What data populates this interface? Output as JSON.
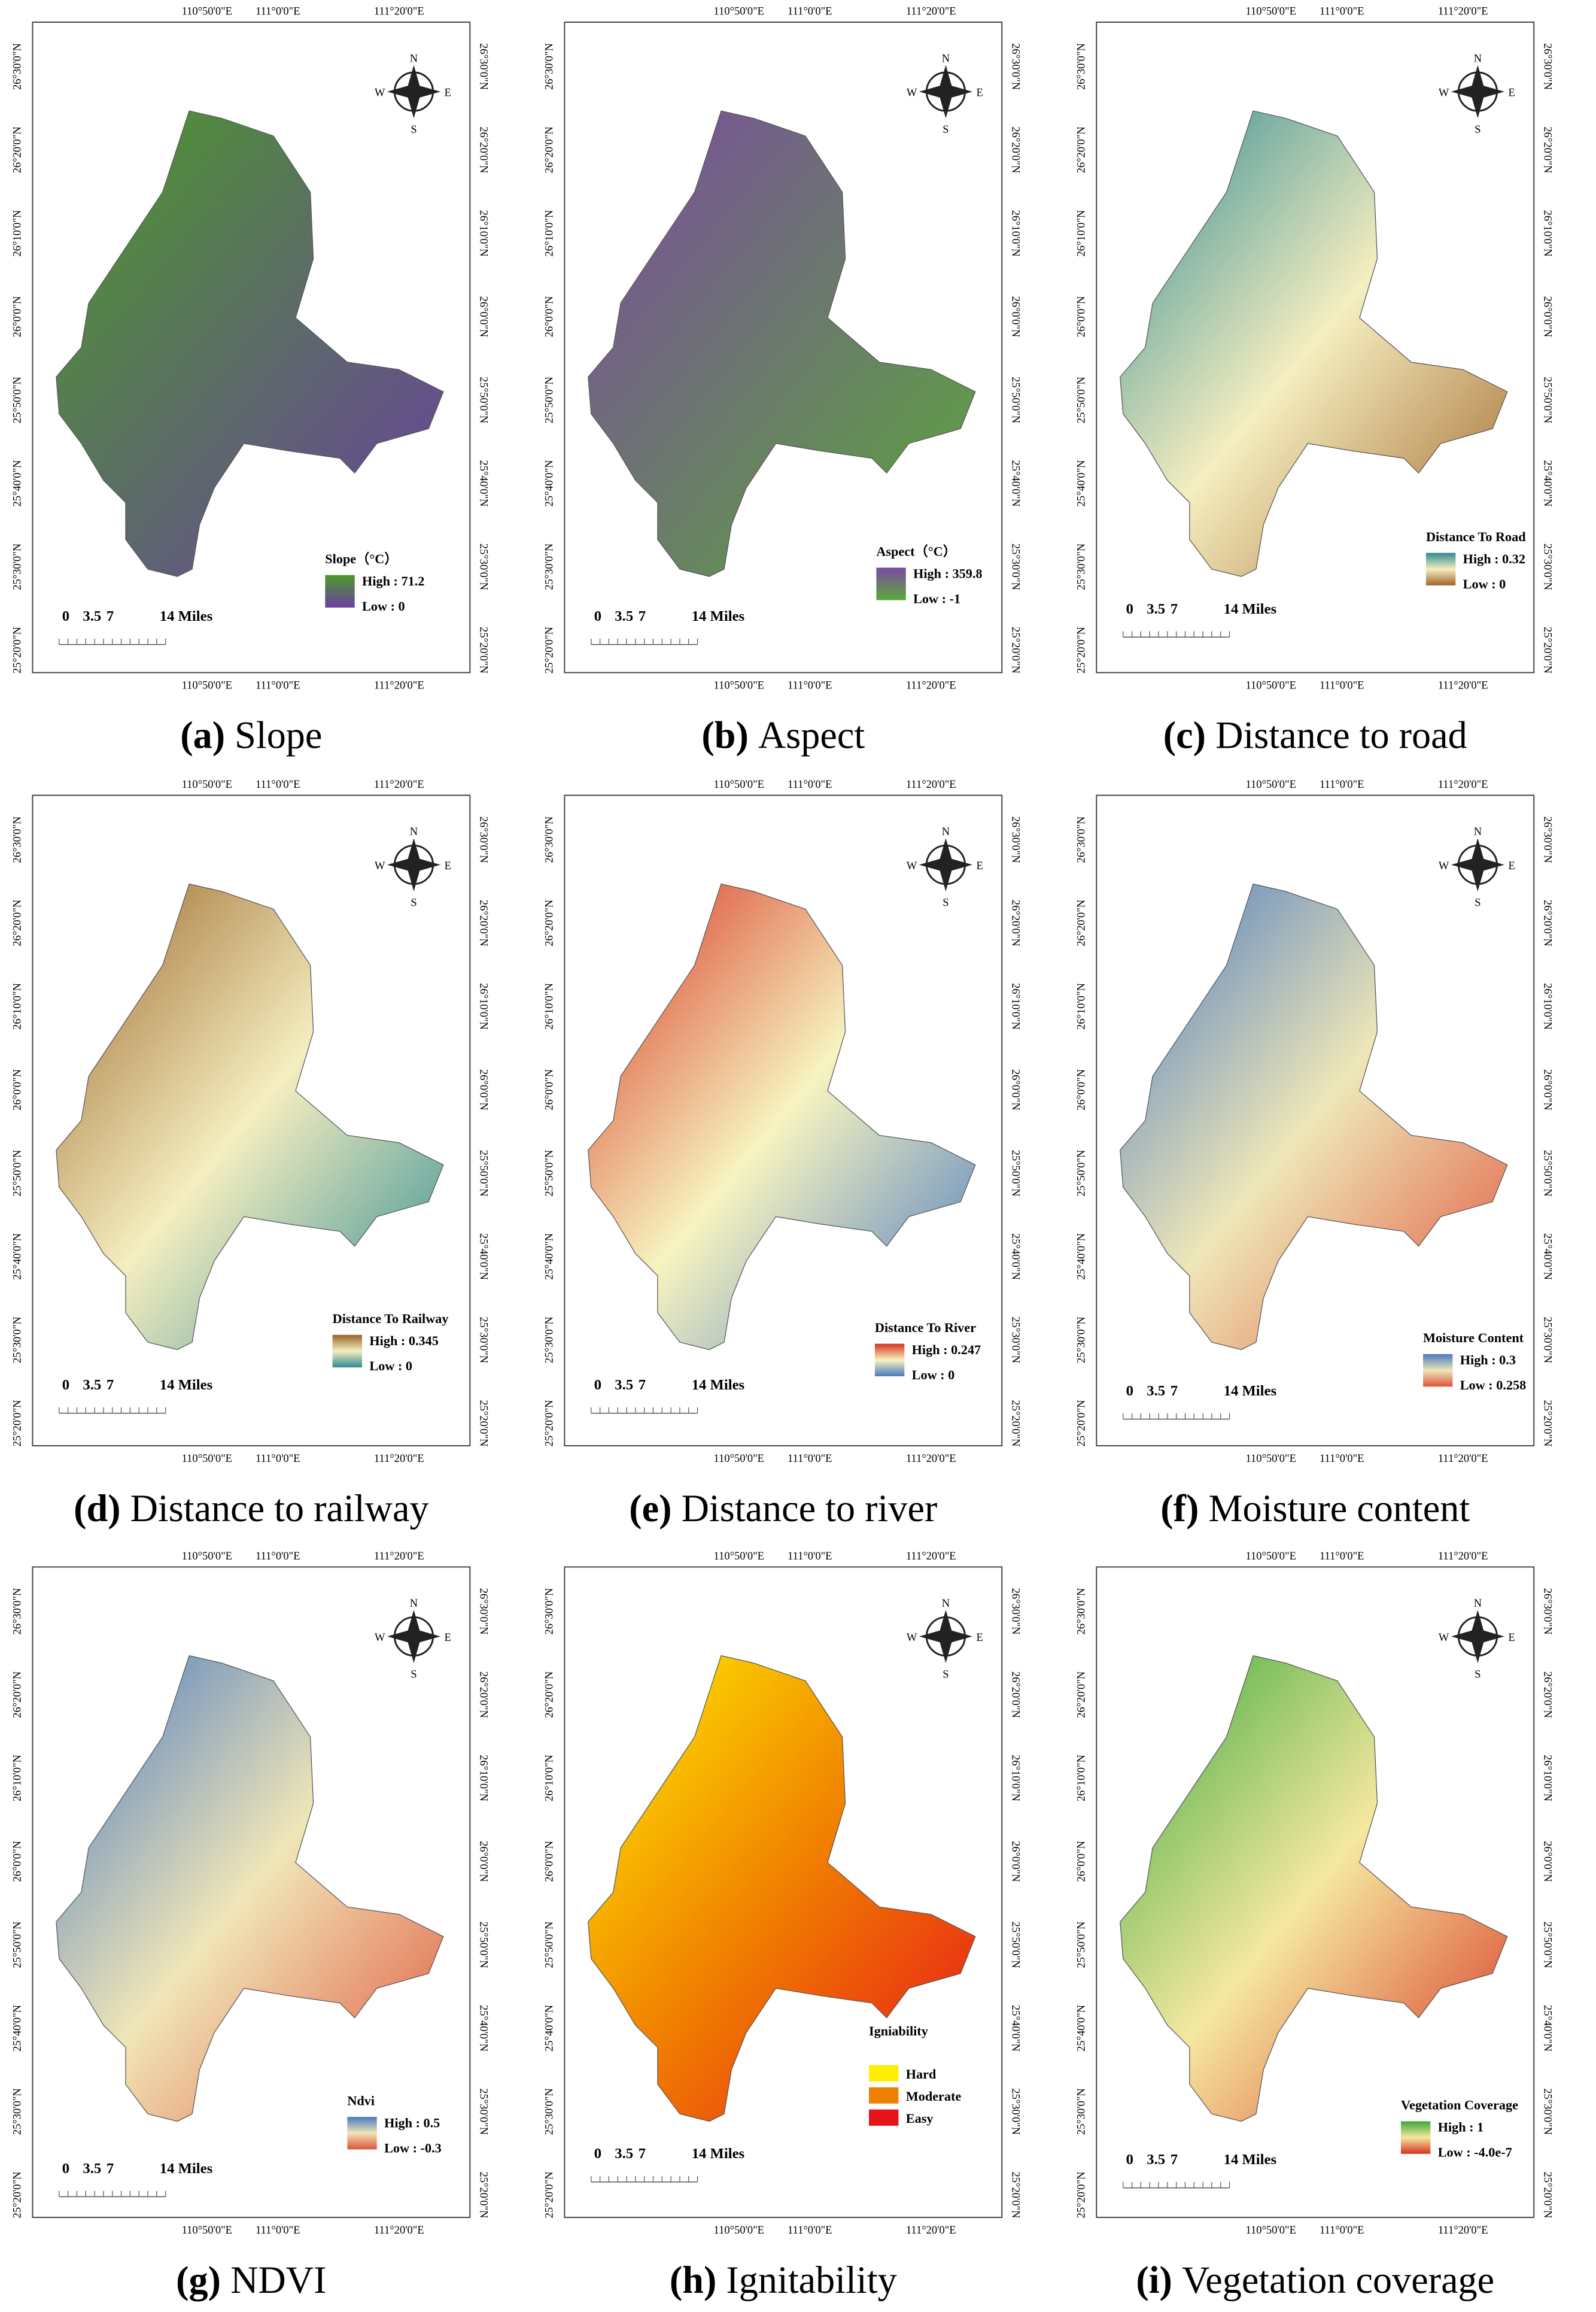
{
  "lon_labels": [
    "110°50'0\"E",
    "111°0'0\"E",
    "111°20'0\"E"
  ],
  "lat_labels": [
    "26°30'0\"N",
    "26°20'0\"N",
    "26°10'0\"N",
    "26°0'0\"N",
    "25°50'0\"N",
    "25°40'0\"N",
    "25°30'0\"N",
    "25°20'0\"N"
  ],
  "compass": {
    "n": "N",
    "s": "S",
    "e": "E",
    "w": "W"
  },
  "scale_bar": [
    "0",
    "3.5",
    "7",
    "14 Miles"
  ],
  "panels": [
    {
      "tag": "(a)",
      "caption": "Slope",
      "legend_title": "Slope（°C）",
      "legend_kind": "ramp",
      "legend_labels": [
        "High : 71.2",
        "Low : 0"
      ],
      "colors": [
        "#4c9a2a",
        "#6a3fa0"
      ]
    },
    {
      "tag": "(b)",
      "caption": "Aspect",
      "legend_title": "Aspect（°C）",
      "legend_kind": "ramp",
      "legend_labels": [
        "High : 359.8",
        "Low : -1"
      ],
      "colors": [
        "#7b4aa0",
        "#5ba83a"
      ]
    },
    {
      "tag": "(c)",
      "caption": "Distance to road",
      "legend_title": "Distance To Road",
      "legend_kind": "ramp",
      "legend_labels": [
        "High : 0.32",
        "Low : 0"
      ],
      "colors": [
        "#2e8a92",
        "#f5eec0",
        "#a0642a"
      ]
    },
    {
      "tag": "(d)",
      "caption": "Distance to railway",
      "legend_title": "Distance To Railway",
      "legend_kind": "ramp",
      "legend_labels": [
        "High : 0.345",
        "Low : 0"
      ],
      "colors": [
        "#9a6428",
        "#f5eec0",
        "#2e8a92"
      ]
    },
    {
      "tag": "(e)",
      "caption": "Distance to river",
      "legend_title": "Distance To River",
      "legend_kind": "ramp",
      "legend_labels": [
        "High : 0.247",
        "Low : 0"
      ],
      "colors": [
        "#d7301f",
        "#f7f4c0",
        "#4a78c0"
      ]
    },
    {
      "tag": "(f)",
      "caption": "Moisture content",
      "legend_title": "Moisture Content",
      "legend_kind": "ramp",
      "legend_labels": [
        "High : 0.3",
        "Low : 0.258"
      ],
      "colors": [
        "#4a78c0",
        "#eee7b8",
        "#e0533a"
      ]
    },
    {
      "tag": "(g)",
      "caption": "NDVI",
      "legend_title": "Ndvi",
      "legend_kind": "ramp",
      "legend_labels": [
        "High : 0.5",
        "Low : -0.3"
      ],
      "colors": [
        "#4a78c0",
        "#f0e6b8",
        "#e0533a"
      ]
    },
    {
      "tag": "(h)",
      "caption": "Ignitability",
      "legend_title": "Igniability",
      "legend_kind": "classes",
      "legend_labels": [
        "Hard",
        "Moderate",
        "Easy"
      ],
      "colors": [
        "#ffee00",
        "#f08000",
        "#e8121a"
      ]
    },
    {
      "tag": "(i)",
      "caption": "Vegetation coverage",
      "legend_title": "Vegetation Coverage",
      "legend_kind": "ramp",
      "legend_labels": [
        "High : 1",
        "Low : -4.0e-7"
      ],
      "colors": [
        "#3aa83a",
        "#f5e8a0",
        "#d7301f"
      ]
    }
  ]
}
